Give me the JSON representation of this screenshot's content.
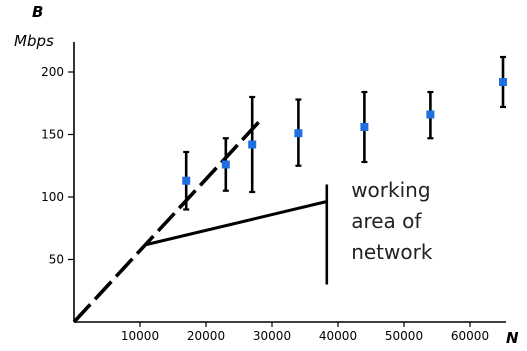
{
  "chart_data": {
    "type": "scatter",
    "y_symbol": "B",
    "y_unit": "Mbps",
    "x_symbol": "N",
    "xlim": [
      0,
      65000
    ],
    "ylim": [
      0,
      210
    ],
    "x_ticks": [
      10000,
      20000,
      30000,
      40000,
      50000,
      60000
    ],
    "x_tick_labels": [
      "10000",
      "20000",
      "30000",
      "40000",
      "50000",
      "60000"
    ],
    "y_ticks": [
      50,
      100,
      150,
      200
    ],
    "y_tick_labels": [
      "50",
      "100",
      "150",
      "200"
    ],
    "grid": false,
    "points": [
      {
        "x": 17000,
        "y": 113,
        "err_low": 90,
        "err_high": 136
      },
      {
        "x": 23000,
        "y": 126,
        "err_low": 105,
        "err_high": 147
      },
      {
        "x": 27000,
        "y": 142,
        "err_low": 104,
        "err_high": 180
      },
      {
        "x": 34000,
        "y": 151,
        "err_low": 125,
        "err_high": 178
      },
      {
        "x": 44000,
        "y": 156,
        "err_low": 128,
        "err_high": 184
      },
      {
        "x": 54000,
        "y": 166,
        "err_low": 147,
        "err_high": 184
      },
      {
        "x": 65000,
        "y": 192,
        "err_low": 172,
        "err_high": 212
      }
    ],
    "point_color": "#1f6fe0",
    "dashed_line": [
      [
        0,
        0
      ],
      [
        28000,
        160
      ]
    ],
    "solid_line": [
      [
        11000,
        62
      ],
      [
        38000,
        96
      ]
    ],
    "vertical_marker": {
      "x": 38000,
      "y_range": [
        30,
        110
      ]
    },
    "annotation": {
      "lines": [
        "working",
        "area of",
        "network"
      ],
      "anchor": [
        42000,
        100
      ]
    }
  }
}
